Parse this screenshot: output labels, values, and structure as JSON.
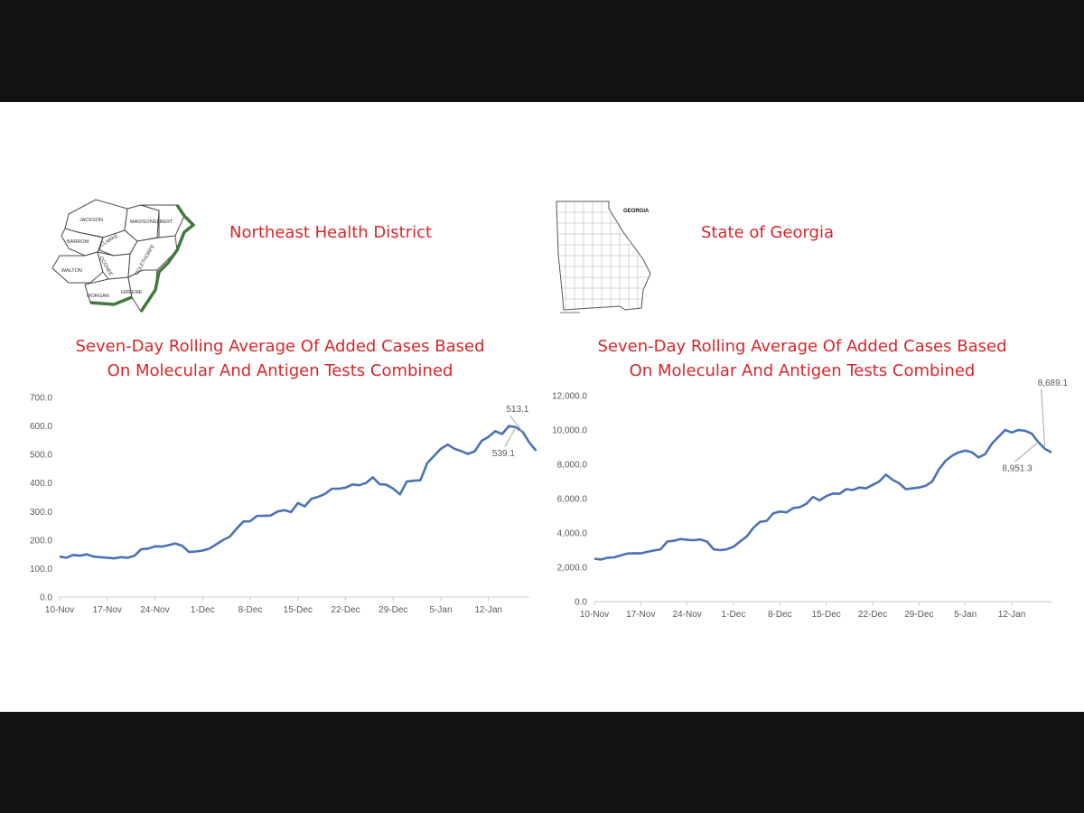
{
  "left_panel": {
    "heading": "Northeast Health District",
    "map_counties": [
      "JACKSON",
      "MADISON",
      "ELBERT",
      "BARROW",
      "CLARKE",
      "WALTON",
      "OCONEE",
      "OGLETHORPE",
      "MORGAN",
      "GREENE"
    ]
  },
  "right_panel": {
    "heading": "State of Georgia",
    "map_label": "GEORGIA"
  },
  "chart_data": [
    {
      "type": "line",
      "title": "Seven-Day Rolling Average Of  Added Cases Based",
      "subtitle": "On Molecular And Antigen Tests Combined",
      "xlabel": "",
      "ylabel": "",
      "ylim": [
        0,
        700
      ],
      "y_ticks": [
        "0.0",
        "100.0",
        "200.0",
        "300.0",
        "400.0",
        "500.0",
        "600.0",
        "700.0"
      ],
      "x_ticks": [
        "10-Nov",
        "17-Nov",
        "24-Nov",
        "1-Dec",
        "8-Dec",
        "15-Dec",
        "22-Dec",
        "29-Dec",
        "5-Jan",
        "12-Jan"
      ],
      "x_start": "10-Nov",
      "grid": false,
      "line_color": "#4a73b3",
      "annotations": [
        {
          "text": "513.1",
          "day": 68
        },
        {
          "text": "539.1",
          "day": 67
        }
      ],
      "series": [
        {
          "values": [
            142,
            138,
            148,
            145,
            150,
            142,
            140,
            138,
            136,
            140,
            138,
            145,
            168,
            170,
            178,
            177,
            182,
            188,
            180,
            158,
            160,
            163,
            170,
            185,
            200,
            212,
            240,
            265,
            266,
            285,
            285,
            286,
            300,
            305,
            298,
            330,
            318,
            345,
            352,
            362,
            380,
            380,
            384,
            395,
            392,
            400,
            420,
            396,
            394,
            380,
            360,
            405,
            408,
            410,
            470,
            495,
            520,
            535,
            520,
            512,
            502,
            512,
            548,
            562,
            582,
            572,
            600,
            596,
            580,
            542,
            513
          ]
        }
      ]
    },
    {
      "type": "line",
      "title": "Seven-Day Rolling Average Of  Added Cases Based",
      "subtitle": "On Molecular And Antigen Tests Combined",
      "xlabel": "",
      "ylabel": "",
      "ylim": [
        0,
        12000
      ],
      "y_ticks": [
        "0.0",
        "2,000.0",
        "4,000.0",
        "6,000.0",
        "8,000.0",
        "10,000.0",
        "12,000.0"
      ],
      "x_ticks": [
        "10-Nov",
        "17-Nov",
        "24-Nov",
        "1-Dec",
        "8-Dec",
        "15-Dec",
        "22-Dec",
        "29-Dec",
        "5-Jan",
        "12-Jan"
      ],
      "x_start": "10-Nov",
      "grid": false,
      "line_color": "#4a73b3",
      "annotations": [
        {
          "text": "8,689.1",
          "day": 68
        },
        {
          "text": "8,951.3",
          "day": 67
        }
      ],
      "series": [
        {
          "values": [
            2500,
            2450,
            2560,
            2580,
            2700,
            2800,
            2820,
            2810,
            2900,
            2980,
            3050,
            3500,
            3550,
            3650,
            3600,
            3580,
            3620,
            3500,
            3050,
            3000,
            3050,
            3200,
            3500,
            3800,
            4300,
            4650,
            4700,
            5150,
            5250,
            5200,
            5450,
            5500,
            5700,
            6100,
            5900,
            6150,
            6300,
            6280,
            6550,
            6500,
            6650,
            6600,
            6800,
            7000,
            7400,
            7100,
            6900,
            6550,
            6600,
            6650,
            6750,
            7000,
            7700,
            8200,
            8500,
            8700,
            8800,
            8700,
            8400,
            8600,
            9200,
            9600,
            10000,
            9850,
            10000,
            9950,
            9800,
            9300,
            8900,
            8689
          ]
        }
      ]
    }
  ]
}
